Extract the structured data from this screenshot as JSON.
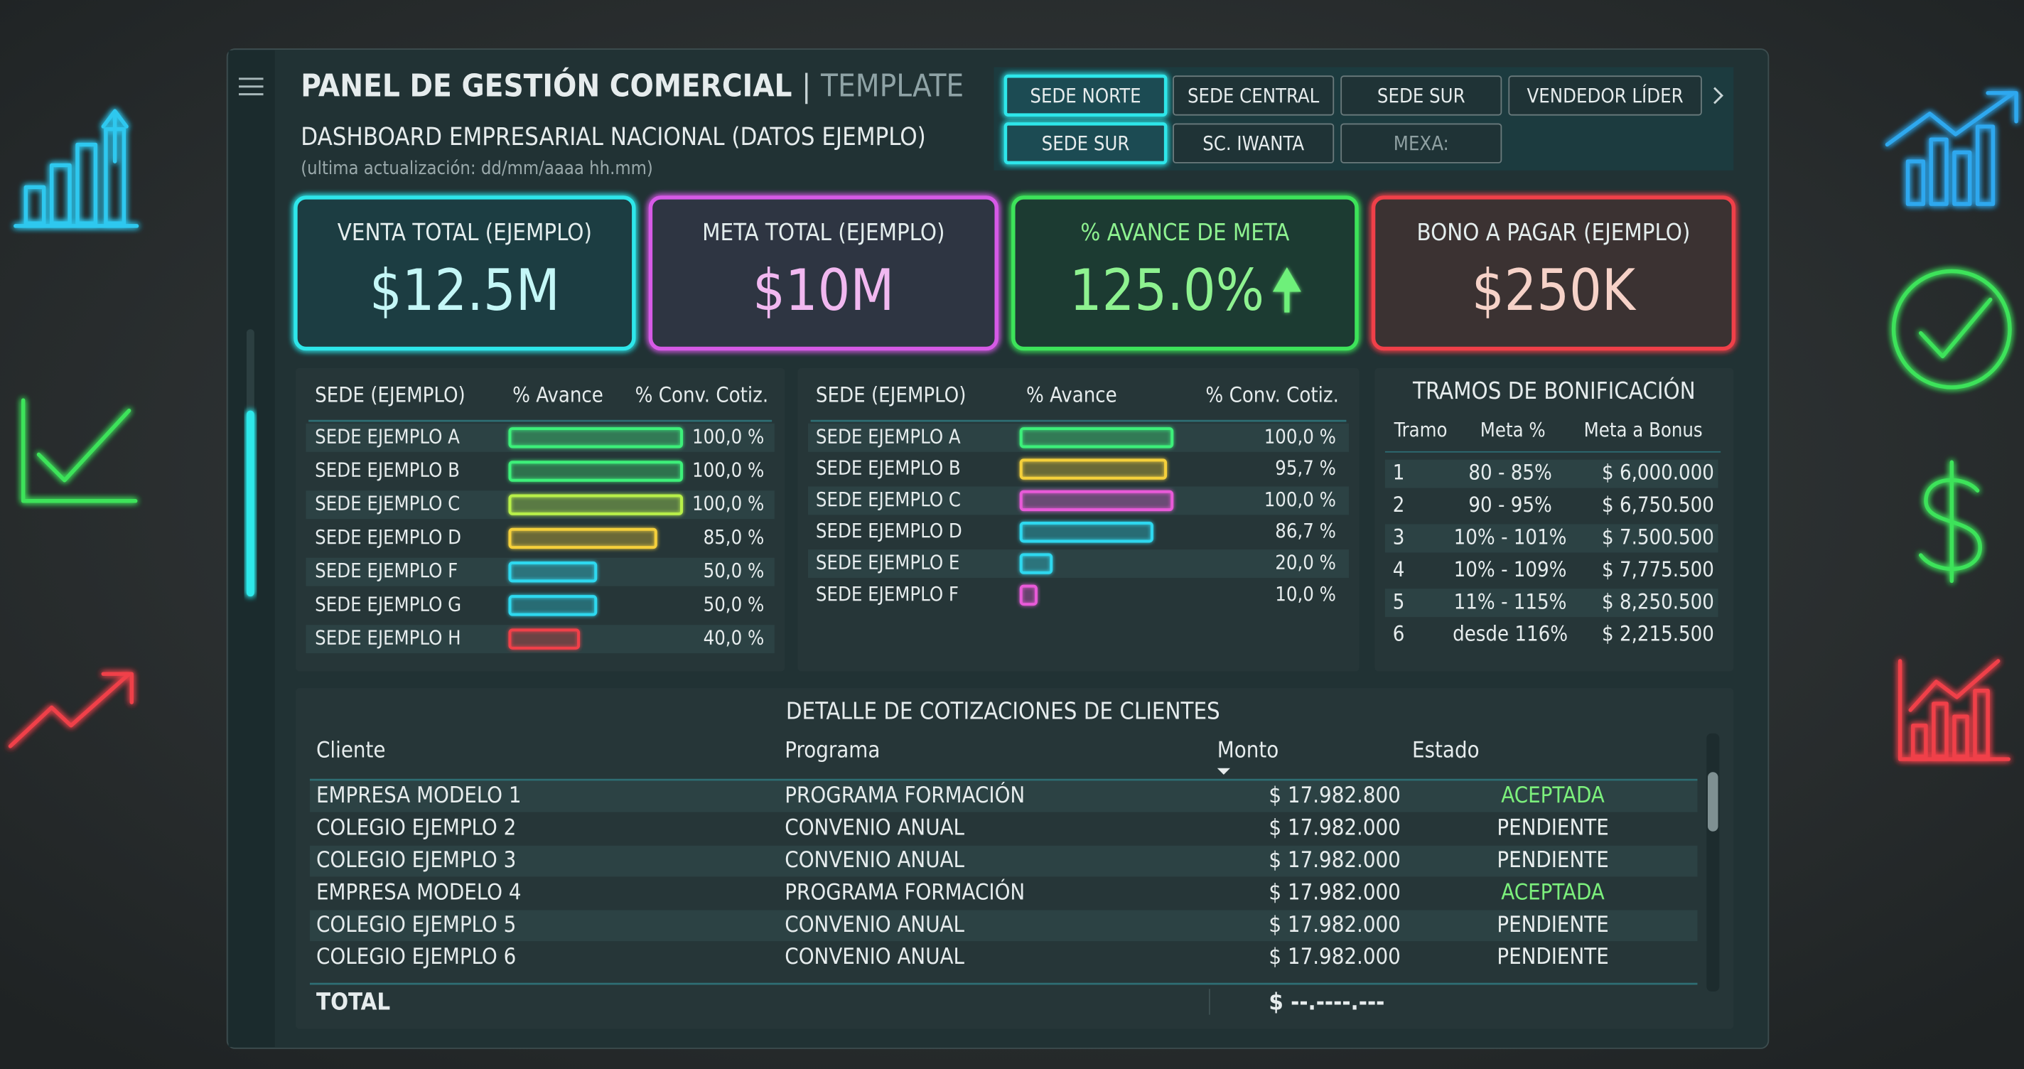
{
  "header": {
    "title": "PANEL DE GESTIÓN COMERCIAL",
    "separator": "|",
    "template": "TEMPLATE",
    "subtitle": "DASHBOARD EMPRESARIAL NACIONAL (DATOS EJEMPLO)",
    "updated": "(ultima actualización: dd/mm/aaaa hh.mm)"
  },
  "filters": [
    [
      {
        "label": "SEDE NORTE",
        "state": "active"
      },
      {
        "label": "SEDE CENTRAL",
        "state": "normal"
      },
      {
        "label": "SEDE SUR",
        "state": "normal"
      },
      {
        "label": "VENDEDOR LÍDER",
        "state": "normal"
      }
    ],
    [
      {
        "label": "SEDE SUR",
        "state": "active"
      },
      {
        "label": "SC. IWANTA",
        "state": "normal"
      },
      {
        "label": "MEXA:",
        "state": "disabled"
      }
    ]
  ],
  "kpis": [
    {
      "label": "VENTA TOTAL (EJEMPLO)",
      "value": "$12.5M",
      "color": "#2fe6ea",
      "fill": "#1f3d42",
      "text_color": "#c4f7f7",
      "label_color": "#e4eeee"
    },
    {
      "label": "META TOTAL (EJEMPLO)",
      "value": "$10M",
      "color": "#d65ae6",
      "fill": "#2d3442",
      "text_color": "#f1b8f0",
      "label_color": "#e4eeee"
    },
    {
      "label": "% AVANCE DE META",
      "value": "125.0%",
      "color": "#3ee35a",
      "fill": "#1f3b33",
      "text_color": "#8ef290",
      "label_color": "#8ef290"
    },
    {
      "label": "BONO A PAGAR (EJEMPLO)",
      "value": "$250K",
      "color": "#f0404a",
      "fill": "#3b3331",
      "text_color": "#f6d2c8",
      "label_color": "#e4eeee"
    }
  ],
  "sede_tables": [
    {
      "columns": [
        "SEDE (EJEMPLO)",
        "% Avance",
        "% Conv. Cotiz."
      ],
      "scale": [
        0,
        100
      ],
      "rows": [
        {
          "name": "SEDE EJEMPLO A",
          "value": 100,
          "label": "100,0 %",
          "color": "#3ef07a"
        },
        {
          "name": "SEDE EJEMPLO B",
          "value": 100,
          "label": "100,0 %",
          "color": "#3ef07a"
        },
        {
          "name": "SEDE EJEMPLO C",
          "value": 100,
          "label": "100,0 %",
          "color": "#b8f04a"
        },
        {
          "name": "SEDE EJEMPLO D",
          "value": 85,
          "label": "85,0 %",
          "color": "#f5d03a"
        },
        {
          "name": "SEDE EJEMPLO F",
          "value": 50,
          "label": "50,0 %",
          "color": "#2fd8ef"
        },
        {
          "name": "SEDE EJEMPLO G",
          "value": 50,
          "label": "50,0 %",
          "color": "#2fd8ef"
        },
        {
          "name": "SEDE EJEMPLO H",
          "value": 40,
          "label": "40,0 %",
          "color": "#f0404a"
        }
      ]
    },
    {
      "columns": [
        "SEDE (EJEMPLO)",
        "% Avance",
        "% Conv. Cotiz."
      ],
      "scale": [
        0,
        100
      ],
      "rows": [
        {
          "name": "SEDE EJEMPLO A",
          "value": 100,
          "label": "100,0 %",
          "color": "#3ef07a"
        },
        {
          "name": "SEDE EJEMPLO B",
          "value": 95.7,
          "label": "95,7 %",
          "color": "#f5d03a"
        },
        {
          "name": "SEDE EJEMPLO C",
          "value": 100,
          "label": "100,0 %",
          "color": "#e85ad8"
        },
        {
          "name": "SEDE EJEMPLO D",
          "value": 86.7,
          "label": "86,7 %",
          "color": "#2fd8ef"
        },
        {
          "name": "SEDE EJEMPLO E",
          "value": 20,
          "label": "20,0 %",
          "color": "#2fd8ef"
        },
        {
          "name": "SEDE EJEMPLO F",
          "value": 10,
          "label": "10,0 %",
          "color": "#e85ad8"
        }
      ]
    }
  ],
  "tramos": {
    "title": "TRAMOS DE BONIFICACIÓN",
    "columns": [
      "Tramo",
      "Meta %",
      "Meta a Bonus"
    ],
    "rows": [
      [
        "1",
        "80 - 85%",
        "$ 6,000.000"
      ],
      [
        "2",
        "90 - 95%",
        "$ 6,750.500"
      ],
      [
        "3",
        "10% - 101%",
        "$ 7.500.500"
      ],
      [
        "4",
        "10% - 109%",
        "$ 7,775.500"
      ],
      [
        "5",
        "11% - 115%",
        "$ 8,250.500"
      ],
      [
        "6",
        "desde 116%",
        "$ 2,215.500"
      ]
    ]
  },
  "cotizaciones": {
    "title": "DETALLE DE COTIZACIONES DE CLIENTES",
    "columns": [
      "Cliente",
      "Programa",
      "Monto",
      "Estado"
    ],
    "rows": [
      {
        "cliente": "EMPRESA MODELO 1",
        "programa": "PROGRAMA FORMACIÓN",
        "monto": "$ 17.982.800",
        "estado": "ACEPTADA",
        "color": "#7cf07c"
      },
      {
        "cliente": "COLEGIO EJEMPLO 2",
        "programa": "CONVENIO ANUAL",
        "monto": "$ 17.982.000",
        "estado": "PENDIENTE",
        "color": "#e8eeee"
      },
      {
        "cliente": "COLEGIO EJEMPLO 3",
        "programa": "CONVENIO ANUAL",
        "monto": "$ 17.982.000",
        "estado": "PENDIENTE",
        "color": "#e8eeee"
      },
      {
        "cliente": "EMPRESA MODELO 4",
        "programa": "PROGRAMA FORMACIÓN",
        "monto": "$ 17.982.000",
        "estado": "ACEPTADA",
        "color": "#7cf07c"
      },
      {
        "cliente": "COLEGIO EJEMPLO 5",
        "programa": "CONVENIO ANUAL",
        "monto": "$ 17.982.000",
        "estado": "PENDIENTE",
        "color": "#e8eeee"
      },
      {
        "cliente": "COLEGIO EJEMPLO 6",
        "programa": "CONVENIO ANUAL",
        "monto": "$ 17.982.000",
        "estado": "PENDIENTE",
        "color": "#e8eeee"
      }
    ],
    "total_label": "TOTAL",
    "total_value": "$ --.----.---"
  }
}
